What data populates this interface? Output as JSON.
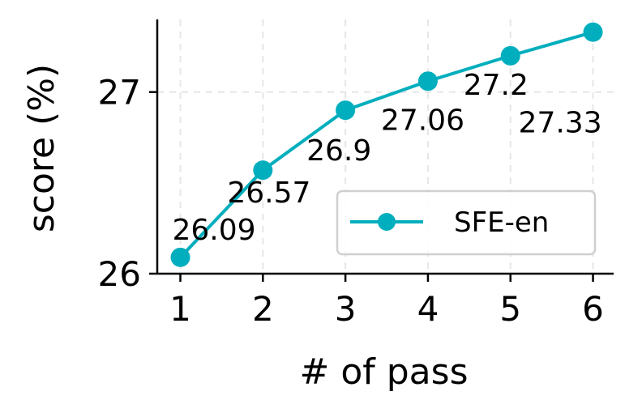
{
  "chart_data": {
    "type": "line",
    "xlabel": "# of pass",
    "ylabel": "score (%)",
    "x": [
      1,
      2,
      3,
      4,
      5,
      6
    ],
    "xticks": [
      "1",
      "2",
      "3",
      "4",
      "5",
      "6"
    ],
    "yticks": [
      "26",
      "27"
    ],
    "ytick_values": [
      26,
      27
    ],
    "xlim": [
      0.72,
      6.25
    ],
    "ylim": [
      26,
      27.4
    ],
    "grid": true,
    "legend_position": "lower-right",
    "series": [
      {
        "name": "SFE-en",
        "color": "#00aebd",
        "values": [
          26.09,
          26.57,
          26.9,
          27.06,
          27.2,
          27.33
        ],
        "labels": [
          "26.09",
          "26.57",
          "26.9",
          "27.06",
          "27.2",
          "27.33"
        ]
      }
    ]
  }
}
